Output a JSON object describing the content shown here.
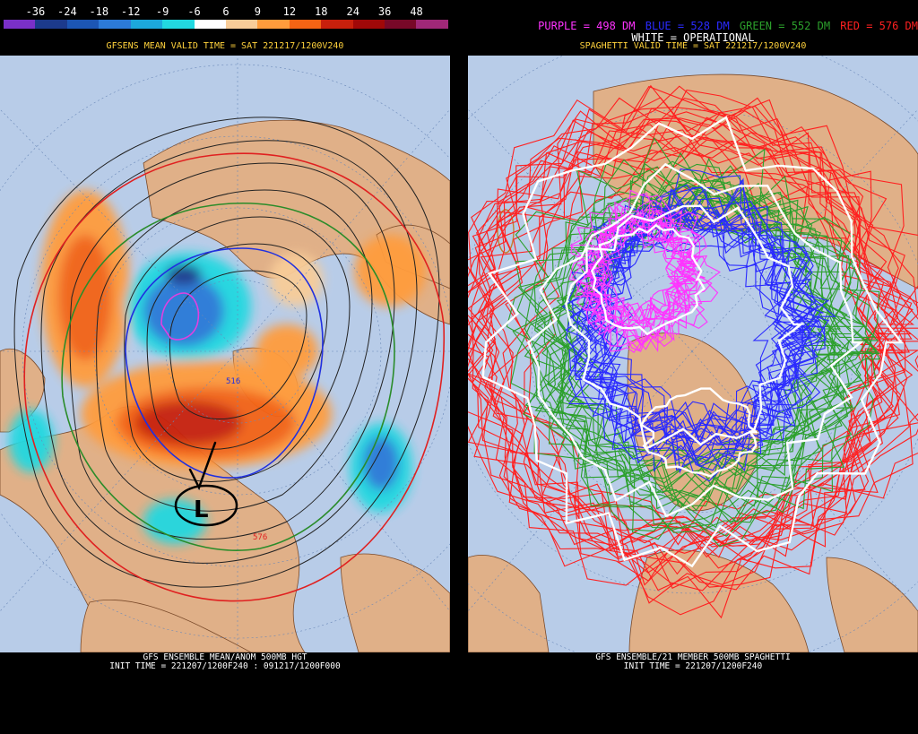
{
  "left_panel": {
    "color_scale": {
      "ticks": [
        "-36",
        "-24",
        "-18",
        "-12",
        "-9",
        "-6",
        "6",
        "9",
        "12",
        "18",
        "24",
        "36",
        "48"
      ],
      "colors": [
        "#7a30c8",
        "#1c3a8c",
        "#1c56b4",
        "#2c7ad8",
        "#1ca8dc",
        "#22d8e0",
        "#ffffff",
        "#f8cc98",
        "#ff9c3c",
        "#f46414",
        "#c8200c",
        "#a00808",
        "#780828",
        "#a02878"
      ]
    },
    "valid_time": "GFSENS MEAN VALID TIME = SAT 221217/1200V240",
    "footer_line1": "GFS ENSEMBLE MEAN/ANOM 500MB HGT",
    "footer_line2": "INIT TIME = 221207/1200F240 : 091217/1200F000",
    "contour_labels": [
      "516",
      "576"
    ],
    "annotation_letter": "L"
  },
  "right_panel": {
    "legend": {
      "purple": "PURPLE = 498 DM",
      "blue": "BLUE = 528 DM",
      "green": "GREEN = 552 DM",
      "red": "RED = 576 DM",
      "white": "WHITE = OPERATIONAL",
      "purple_color": "#ff33ff",
      "blue_color": "#2a2aff",
      "green_color": "#2ca02c",
      "red_color": "#ff2020",
      "white_color": "#ffffff"
    },
    "valid_time": "SPAGHETTI VALID TIME = SAT 221217/1200V240",
    "footer_line1": "GFS ENSEMBLE/21 MEMBER 500MB SPAGHETTI",
    "footer_line2": "INIT TIME = 221207/1200F240"
  },
  "colors": {
    "ocean": "#b8cce8",
    "land": "#e0b088"
  }
}
